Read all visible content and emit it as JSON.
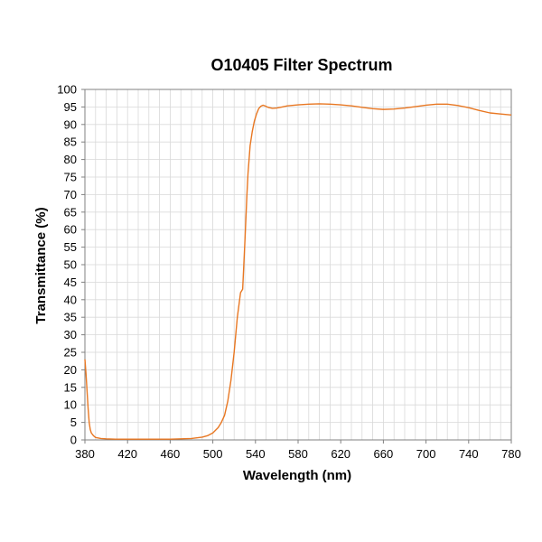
{
  "chart_data": {
    "type": "line",
    "title": "O10405 Filter Spectrum",
    "xlabel": "Wavelength (nm)",
    "ylabel": "Transmittance (%)",
    "xlim": [
      380,
      780
    ],
    "ylim": [
      0,
      100
    ],
    "xticks": [
      380,
      420,
      460,
      500,
      540,
      580,
      620,
      660,
      700,
      740,
      780
    ],
    "yticks": [
      0,
      5,
      10,
      15,
      20,
      25,
      30,
      35,
      40,
      45,
      50,
      55,
      60,
      65,
      70,
      75,
      80,
      85,
      90,
      95,
      100
    ],
    "grid": true,
    "legend": "none",
    "line_color": "#E87722",
    "series": [
      {
        "x": [
          380,
          381,
          382,
          383,
          384,
          385,
          386,
          388,
          390,
          395,
          400,
          410,
          420,
          440,
          460,
          470,
          480,
          490,
          495,
          500,
          505,
          508,
          511,
          514,
          517,
          520,
          523,
          526,
          528,
          530,
          531,
          532,
          533,
          534,
          535,
          537,
          539,
          541,
          543,
          545,
          547,
          549,
          551,
          553,
          556,
          560,
          565,
          570,
          580,
          590,
          600,
          610,
          620,
          630,
          640,
          650,
          660,
          670,
          680,
          690,
          700,
          710,
          720,
          730,
          740,
          750,
          760,
          770,
          780
        ],
        "y": [
          23,
          19,
          14,
          9,
          5,
          3,
          2,
          1.2,
          0.7,
          0.4,
          0.3,
          0.2,
          0.2,
          0.2,
          0.2,
          0.3,
          0.4,
          0.8,
          1.2,
          2,
          3.5,
          5,
          7,
          11,
          17,
          25,
          35,
          42,
          43,
          56,
          63,
          70,
          76,
          80,
          84,
          88,
          91,
          93,
          94.5,
          95.2,
          95.5,
          95.3,
          95,
          94.8,
          94.6,
          94.7,
          95,
          95.3,
          95.6,
          95.8,
          95.9,
          95.8,
          95.6,
          95.3,
          94.9,
          94.5,
          94.3,
          94.4,
          94.7,
          95.1,
          95.5,
          95.8,
          95.8,
          95.4,
          94.8,
          94,
          93.3,
          93,
          92.7
        ]
      }
    ]
  }
}
